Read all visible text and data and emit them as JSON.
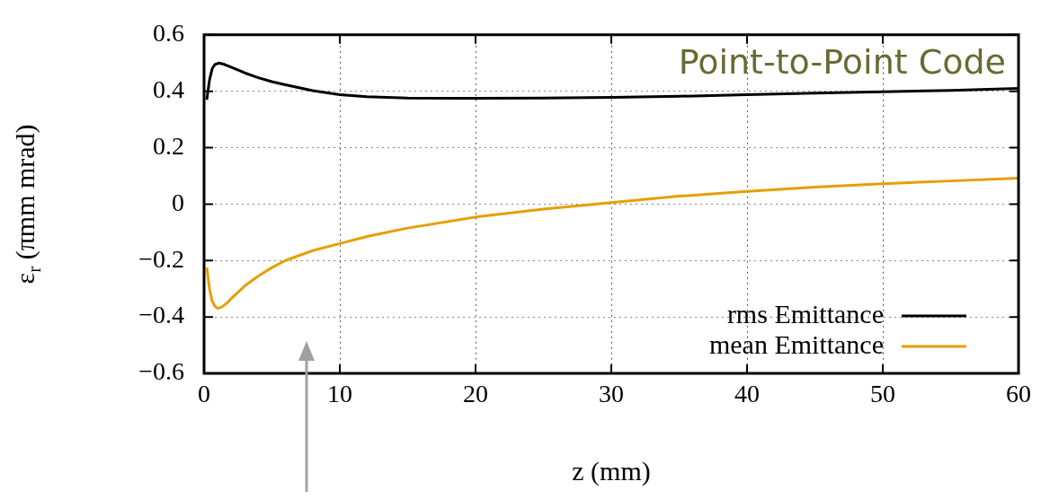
{
  "chart_data": {
    "type": "line",
    "title": "Point-to-Point Code",
    "xlabel": "z (mm)",
    "ylabel": "ε$_{r}$ (πmm mrad)",
    "xlim": [
      0,
      60
    ],
    "xticks": [
      0,
      10,
      20,
      30,
      40,
      50,
      60
    ],
    "ylim": [
      -0.6,
      0.6
    ],
    "yticks": [
      -0.6,
      -0.4,
      -0.2,
      0,
      0.2,
      0.4,
      0.6
    ],
    "grid": true,
    "legend": "bottom right",
    "marker": "none",
    "line_style": "solid",
    "series": [
      {
        "name": "rms Emittance",
        "color": "#000000",
        "x": [
          0.2,
          0.4,
          0.6,
          0.8,
          1.1,
          1.5,
          2,
          3,
          4,
          5,
          6,
          8,
          10,
          12,
          15,
          20,
          25,
          30,
          35,
          40,
          45,
          50,
          55,
          60
        ],
        "values": [
          0.37,
          0.44,
          0.48,
          0.495,
          0.5,
          0.495,
          0.485,
          0.465,
          0.448,
          0.434,
          0.423,
          0.402,
          0.388,
          0.381,
          0.376,
          0.375,
          0.376,
          0.378,
          0.382,
          0.388,
          0.393,
          0.398,
          0.403,
          0.41
        ]
      },
      {
        "name": "mean Emittance",
        "color": "#e69f00",
        "x": [
          0.2,
          0.4,
          0.6,
          0.8,
          1,
          1.3,
          1.7,
          2,
          3,
          4,
          5,
          6,
          8,
          10,
          12,
          15,
          20,
          25,
          30,
          35,
          40,
          45,
          50,
          55,
          60
        ],
        "values": [
          -0.225,
          -0.3,
          -0.345,
          -0.362,
          -0.37,
          -0.365,
          -0.35,
          -0.335,
          -0.29,
          -0.255,
          -0.225,
          -0.2,
          -0.165,
          -0.14,
          -0.115,
          -0.085,
          -0.046,
          -0.018,
          0.005,
          0.028,
          0.045,
          0.06,
          0.072,
          0.082,
          0.092
        ]
      }
    ]
  }
}
